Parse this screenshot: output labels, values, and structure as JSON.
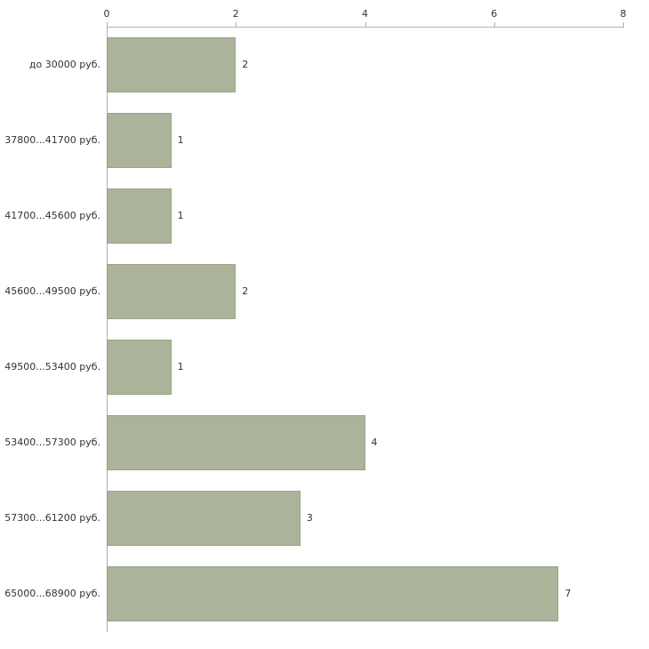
{
  "chart_data": {
    "type": "bar",
    "orientation": "horizontal",
    "title": "",
    "xlabel": "",
    "ylabel": "",
    "categories": [
      "до 30000 руб.",
      "37800...41700 руб.",
      "41700...45600 руб.",
      "45600...49500 руб.",
      "49500...53400 руб.",
      "53400...57300 руб.",
      "57300...61200 руб.",
      "65000...68900 руб."
    ],
    "values": [
      2,
      1,
      1,
      2,
      1,
      4,
      3,
      7
    ],
    "xlim": [
      0,
      8
    ],
    "x_ticks": [
      "0",
      "2",
      "4",
      "6",
      "8"
    ],
    "grid": false,
    "legend": false,
    "value_labels": [
      "2",
      "1",
      "1",
      "2",
      "1",
      "4",
      "3",
      "7"
    ],
    "colors": {
      "bar_fill": "#abb49b",
      "bar_border": "#99a385",
      "axis_line": "#b0b0b0",
      "text": "#333333",
      "background": "#ffffff"
    }
  }
}
